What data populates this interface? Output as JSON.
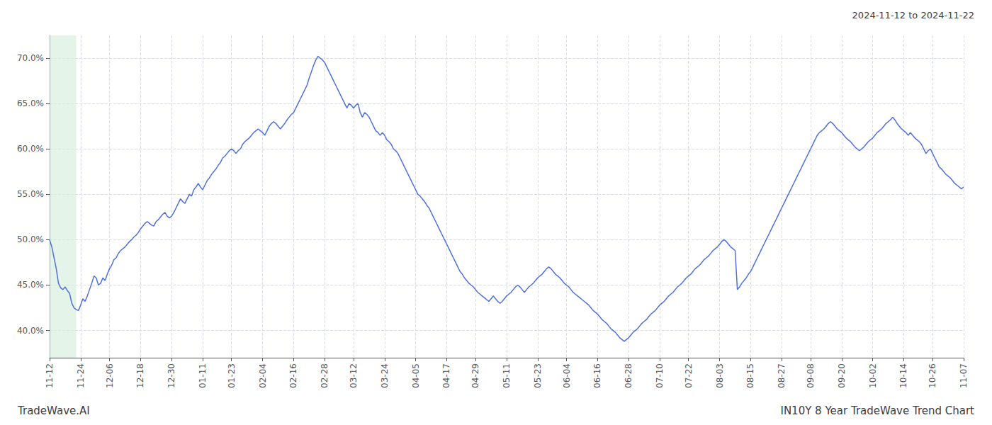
{
  "chart_data": {
    "type": "line",
    "title": "IN10Y 8 Year TradeWave Trend Chart",
    "subtitle": "2024-11-12 to 2024-11-22",
    "annotations": [
      "TradeWave.AI"
    ],
    "grid": true,
    "ylim": [
      0.37,
      0.725
    ],
    "yticks": [
      {
        "value": 0.4,
        "label": "40.0%"
      },
      {
        "value": 0.45,
        "label": "45.0%"
      },
      {
        "value": 0.5,
        "label": "50.0%"
      },
      {
        "value": 0.55,
        "label": "55.0%"
      },
      {
        "value": 0.6,
        "label": "60.0%"
      },
      {
        "value": 0.65,
        "label": "65.0%"
      },
      {
        "value": 0.7,
        "label": "70.0%"
      }
    ],
    "highlight": {
      "start": 0,
      "end": 12,
      "color": "#d4edda"
    },
    "categories": [
      "11-12",
      null,
      null,
      null,
      null,
      null,
      null,
      null,
      null,
      null,
      null,
      null,
      null,
      null,
      "11-24",
      null,
      null,
      null,
      null,
      null,
      null,
      null,
      null,
      null,
      null,
      null,
      null,
      "12-06",
      null,
      null,
      null,
      null,
      null,
      null,
      null,
      null,
      null,
      null,
      null,
      null,
      null,
      "12-18",
      null,
      null,
      null,
      null,
      null,
      null,
      null,
      null,
      null,
      null,
      null,
      null,
      null,
      "12-30",
      null,
      null,
      null,
      null,
      null,
      null,
      null,
      null,
      null,
      null,
      null,
      null,
      null,
      "01-11",
      null,
      null,
      null,
      null,
      null,
      null,
      null,
      null,
      null,
      null,
      null,
      null,
      "01-23",
      null,
      null,
      null,
      null,
      null,
      null,
      null,
      null,
      null,
      null,
      null,
      null,
      null,
      "02-04",
      null,
      null,
      null,
      null,
      null,
      null,
      null,
      null,
      null,
      null,
      null,
      null,
      null,
      "02-16",
      null,
      null,
      null,
      null,
      null,
      null,
      null,
      null,
      null,
      null,
      null,
      null,
      null,
      "02-28",
      null,
      null,
      null,
      null,
      null,
      null,
      null,
      null,
      null,
      null,
      null,
      null,
      "03-12",
      null,
      null,
      null,
      null,
      null,
      null,
      null,
      null,
      null,
      null,
      null,
      null,
      null,
      "03-24",
      null,
      null,
      null,
      null,
      null,
      null,
      null,
      null,
      null,
      null,
      null,
      null,
      null,
      "04-05",
      null,
      null,
      null,
      null,
      null,
      null,
      null,
      null,
      null,
      null,
      null,
      null,
      null,
      "04-17",
      null,
      null,
      null,
      null,
      null,
      null,
      null,
      null,
      null,
      null,
      null,
      null,
      "04-29",
      null,
      null,
      null,
      null,
      null,
      null,
      null,
      null,
      null,
      null,
      null,
      null,
      null,
      "05-11",
      null,
      null,
      null,
      null,
      null,
      null,
      null,
      null,
      null,
      null,
      null,
      null,
      null,
      "05-23",
      null,
      null,
      null,
      null,
      null,
      null,
      null,
      null,
      null,
      null,
      null,
      null,
      "06-04",
      null,
      null,
      null,
      null,
      null,
      null,
      null,
      null,
      null,
      null,
      null,
      null,
      null,
      "06-16",
      null,
      null,
      null,
      null,
      null,
      null,
      null,
      null,
      null,
      null,
      null,
      null,
      null,
      "06-28",
      null,
      null,
      null,
      null,
      null,
      null,
      null,
      null,
      null,
      null,
      null,
      null,
      null,
      "07-10",
      null,
      null,
      null,
      null,
      null,
      null,
      null,
      null,
      null,
      null,
      null,
      null,
      "07-22",
      null,
      null,
      null,
      null,
      null,
      null,
      null,
      null,
      null,
      null,
      null,
      null,
      null,
      "08-03",
      null,
      null,
      null,
      null,
      null,
      null,
      null,
      null,
      null,
      null,
      null,
      null,
      null,
      "08-15",
      null,
      null,
      null,
      null,
      null,
      null,
      null,
      null,
      null,
      null,
      null,
      null,
      null,
      "08-27",
      null,
      null,
      null,
      null,
      null,
      null,
      null,
      null,
      null,
      null,
      null,
      null,
      "09-08",
      null,
      null,
      null,
      null,
      null,
      null,
      null,
      null,
      null,
      null,
      null,
      null,
      null,
      "09-20",
      null,
      null,
      null,
      null,
      null,
      null,
      null,
      null,
      null,
      null,
      null,
      null,
      null,
      "10-02",
      null,
      null,
      null,
      null,
      null,
      null,
      null,
      null,
      null,
      null,
      null,
      null,
      null,
      "10-14",
      null,
      null,
      null,
      null,
      null,
      null,
      null,
      null,
      null,
      null,
      null,
      null,
      "10-26",
      null,
      null,
      null,
      null,
      null,
      null,
      null,
      null,
      null,
      null,
      null,
      null,
      null,
      "11-07"
    ],
    "values": [
      0.5,
      0.492,
      0.48,
      0.468,
      0.452,
      0.447,
      0.445,
      0.448,
      0.444,
      0.441,
      0.43,
      0.425,
      0.423,
      0.422,
      0.428,
      0.435,
      0.432,
      0.438,
      0.445,
      0.452,
      0.46,
      0.458,
      0.45,
      0.452,
      0.458,
      0.455,
      0.462,
      0.468,
      0.472,
      0.478,
      0.48,
      0.485,
      0.488,
      0.49,
      0.492,
      0.495,
      0.498,
      0.5,
      0.503,
      0.505,
      0.508,
      0.512,
      0.515,
      0.518,
      0.52,
      0.518,
      0.516,
      0.515,
      0.52,
      0.522,
      0.525,
      0.528,
      0.53,
      0.526,
      0.524,
      0.526,
      0.53,
      0.535,
      0.54,
      0.545,
      0.542,
      0.54,
      0.545,
      0.55,
      0.548,
      0.555,
      0.558,
      0.562,
      0.558,
      0.555,
      0.56,
      0.565,
      0.568,
      0.572,
      0.575,
      0.578,
      0.582,
      0.585,
      0.59,
      0.592,
      0.595,
      0.598,
      0.6,
      0.598,
      0.595,
      0.598,
      0.6,
      0.605,
      0.608,
      0.61,
      0.612,
      0.615,
      0.618,
      0.62,
      0.622,
      0.62,
      0.618,
      0.615,
      0.62,
      0.625,
      0.628,
      0.63,
      0.628,
      0.625,
      0.622,
      0.625,
      0.628,
      0.632,
      0.635,
      0.638,
      0.64,
      0.645,
      0.65,
      0.655,
      0.66,
      0.665,
      0.67,
      0.678,
      0.685,
      0.692,
      0.698,
      0.702,
      0.7,
      0.698,
      0.695,
      0.69,
      0.685,
      0.68,
      0.675,
      0.67,
      0.665,
      0.66,
      0.655,
      0.65,
      0.645,
      0.65,
      0.648,
      0.645,
      0.648,
      0.65,
      0.64,
      0.635,
      0.64,
      0.638,
      0.635,
      0.63,
      0.625,
      0.62,
      0.618,
      0.615,
      0.618,
      0.615,
      0.61,
      0.608,
      0.605,
      0.6,
      0.598,
      0.595,
      0.59,
      0.585,
      0.58,
      0.575,
      0.57,
      0.565,
      0.56,
      0.555,
      0.55,
      0.548,
      0.545,
      0.542,
      0.538,
      0.535,
      0.53,
      0.525,
      0.52,
      0.515,
      0.51,
      0.505,
      0.5,
      0.495,
      0.49,
      0.485,
      0.48,
      0.475,
      0.47,
      0.465,
      0.462,
      0.458,
      0.455,
      0.452,
      0.45,
      0.448,
      0.445,
      0.442,
      0.44,
      0.438,
      0.436,
      0.434,
      0.432,
      0.435,
      0.438,
      0.435,
      0.432,
      0.43,
      0.432,
      0.435,
      0.438,
      0.44,
      0.442,
      0.445,
      0.448,
      0.45,
      0.448,
      0.445,
      0.442,
      0.445,
      0.448,
      0.45,
      0.452,
      0.455,
      0.458,
      0.46,
      0.462,
      0.465,
      0.468,
      0.47,
      0.468,
      0.465,
      0.462,
      0.46,
      0.458,
      0.455,
      0.452,
      0.45,
      0.448,
      0.445,
      0.442,
      0.44,
      0.438,
      0.436,
      0.434,
      0.432,
      0.43,
      0.428,
      0.425,
      0.422,
      0.42,
      0.418,
      0.415,
      0.412,
      0.41,
      0.408,
      0.405,
      0.402,
      0.4,
      0.398,
      0.395,
      0.392,
      0.39,
      0.388,
      0.39,
      0.392,
      0.395,
      0.398,
      0.4,
      0.402,
      0.405,
      0.408,
      0.41,
      0.412,
      0.415,
      0.418,
      0.42,
      0.422,
      0.425,
      0.428,
      0.43,
      0.432,
      0.435,
      0.438,
      0.44,
      0.442,
      0.445,
      0.448,
      0.45,
      0.452,
      0.455,
      0.458,
      0.46,
      0.462,
      0.465,
      0.468,
      0.47,
      0.472,
      0.475,
      0.478,
      0.48,
      0.482,
      0.485,
      0.488,
      0.49,
      0.492,
      0.495,
      0.498,
      0.5,
      0.498,
      0.495,
      0.492,
      0.49,
      0.488,
      0.445,
      0.448,
      0.452,
      0.455,
      0.458,
      0.462,
      0.465,
      0.47,
      0.475,
      0.48,
      0.485,
      0.49,
      0.495,
      0.5,
      0.505,
      0.51,
      0.515,
      0.52,
      0.525,
      0.53,
      0.535,
      0.54,
      0.545,
      0.55,
      0.555,
      0.56,
      0.565,
      0.57,
      0.575,
      0.58,
      0.585,
      0.59,
      0.595,
      0.6,
      0.605,
      0.61,
      0.615,
      0.618,
      0.62,
      0.622,
      0.625,
      0.628,
      0.63,
      0.628,
      0.625,
      0.622,
      0.62,
      0.618,
      0.615,
      0.612,
      0.61,
      0.608,
      0.605,
      0.602,
      0.6,
      0.598,
      0.6,
      0.602,
      0.605,
      0.608,
      0.61,
      0.612,
      0.615,
      0.618,
      0.62,
      0.622,
      0.625,
      0.628,
      0.63,
      0.632,
      0.635,
      0.632,
      0.628,
      0.625,
      0.622,
      0.62,
      0.618,
      0.615,
      0.618,
      0.615,
      0.612,
      0.61,
      0.608,
      0.605,
      0.6,
      0.595,
      0.598,
      0.6,
      0.595,
      0.59,
      0.585,
      0.58,
      0.578,
      0.575,
      0.572,
      0.57,
      0.568,
      0.565,
      0.562,
      0.56,
      0.558,
      0.556,
      0.558
    ]
  }
}
